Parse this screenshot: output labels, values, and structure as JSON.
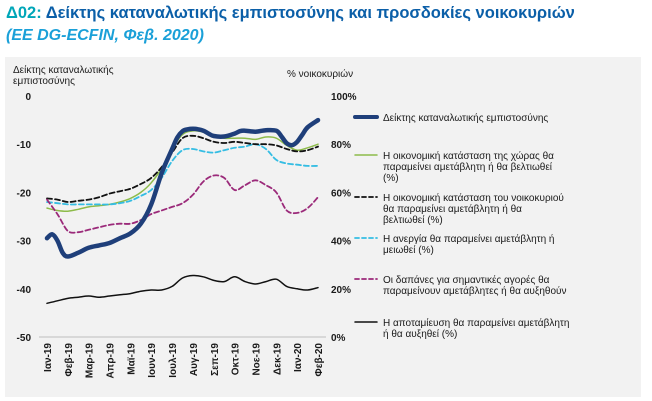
{
  "header": {
    "code": "Δ02:",
    "title": "Δείκτης καταναλωτικής εμπιστοσύνης και προσδοκίες νοικοκυριών",
    "subtitle": "(EE DG-ECFIN, Φεβ. 2020)"
  },
  "chart_data": {
    "type": "line",
    "title": "Δείκτης καταναλωτικής εμπιστοσύνης και προσδοκίες νοικοκυριών",
    "subtitle": "(EE DG-ECFIN, Φεβ. 2020)",
    "y_left_label": "Δείκτης καταναλωτικής εμπιστοσύνης",
    "y_right_label": "% νοικοκυριών",
    "y_left_range": [
      -50,
      0
    ],
    "y_right_range": [
      0,
      100
    ],
    "y_left_ticks": [
      "0",
      "-10",
      "-20",
      "-30",
      "-40",
      "-50"
    ],
    "y_right_ticks": [
      "100%",
      "80%",
      "60%",
      "40%",
      "20%",
      "0%"
    ],
    "categories": [
      "Ιαν-19",
      "Φεβ-19",
      "Μαρ-19",
      "Απρ-19",
      "Μαϊ-19",
      "Ιουν-19",
      "Ιουλ-19",
      "Αυγ-19",
      "Σεπ-19",
      "Οκτ-19",
      "Νοε-19",
      "Δεκ-19",
      "Ιαν-20",
      "Φεβ-20"
    ],
    "grid": false,
    "legend_position": "right",
    "series": [
      {
        "name": "Δείκτης καταναλωτικής εμπιστοσύνης",
        "axis": "left",
        "color": "#1f3f7a",
        "style": "solid-thick",
        "x": [
          0,
          0.25,
          0.5,
          0.75,
          1,
          1.5,
          2,
          2.5,
          3,
          3.5,
          4,
          4.5,
          5,
          5.5,
          6,
          6.25,
          6.5,
          6.75,
          7,
          7.25,
          7.5,
          7.75,
          8,
          8.5,
          9,
          9.25,
          9.5,
          10,
          10.5,
          11,
          11.25,
          11.5,
          11.75,
          12,
          12.25,
          12.5,
          13
        ],
        "y": [
          -29.5,
          -28.7,
          -30,
          -32.5,
          -33.3,
          -32.5,
          -31.5,
          -31,
          -30.5,
          -29.5,
          -28.5,
          -26.5,
          -22.5,
          -16,
          -11,
          -8.6,
          -7.3,
          -6.9,
          -6.8,
          -6.9,
          -7.2,
          -7.8,
          -8.3,
          -8.4,
          -7.8,
          -7.3,
          -7.2,
          -7.4,
          -7.1,
          -7.2,
          -8.4,
          -9.8,
          -10.2,
          -9.5,
          -8,
          -6.5,
          -5
        ]
      },
      {
        "name": "Η οικονομική κατάσταση της χώρας θα παραμείνει αμετάβλητη ή θα βελτιωθεί (%)",
        "axis": "right",
        "color": "#8dbb4a",
        "style": "solid",
        "x": [
          0,
          0.5,
          1,
          1.5,
          2,
          2.5,
          3,
          3.5,
          4,
          4.5,
          5,
          5.5,
          6,
          6.5,
          7,
          7.5,
          8,
          8.5,
          9,
          9.5,
          10,
          10.5,
          11,
          11.5,
          12,
          12.5,
          13
        ],
        "y": [
          53.5,
          52.5,
          52.2,
          53,
          54,
          54.5,
          55,
          56,
          57.5,
          60,
          64,
          70,
          78,
          84,
          85.5,
          85,
          83.5,
          82.5,
          82.5,
          82.5,
          82,
          83,
          82.5,
          79.5,
          77.5,
          78.5,
          80
        ]
      },
      {
        "name": "Η οικονομική κατάσταση του νοικοκυριού θα παραμείνει αμετάβλητη ή θα βελτιωθεί (%)",
        "axis": "right",
        "color": "#111111",
        "style": "dashed",
        "x": [
          0,
          0.5,
          1,
          1.5,
          2,
          2.5,
          3,
          3.5,
          4,
          4.5,
          5,
          5.5,
          6,
          6.5,
          7,
          7.5,
          8,
          8.5,
          9,
          9.5,
          10,
          10.5,
          11,
          11.5,
          12,
          12.5,
          13
        ],
        "y": [
          57.5,
          57,
          56,
          56.5,
          57,
          58,
          59.5,
          60.5,
          61.5,
          63.5,
          66,
          70.5,
          76.5,
          82.5,
          83.5,
          82.5,
          81,
          80.5,
          81,
          80.5,
          80,
          80,
          79.5,
          78,
          77,
          77.5,
          79
        ]
      },
      {
        "name": "Η ανεργία θα παραμείνει αμετάβλητη ή μειωθεί (%)",
        "axis": "right",
        "color": "#35bde3",
        "style": "dashed",
        "x": [
          0,
          0.5,
          1,
          1.5,
          2,
          2.5,
          3,
          3.5,
          4,
          4.5,
          5,
          5.5,
          6,
          6.5,
          7,
          7.5,
          8,
          8.5,
          9,
          9.5,
          10,
          10.5,
          11,
          11.5,
          12,
          12.5,
          13
        ],
        "y": [
          56,
          55.5,
          55,
          55,
          55,
          55,
          55,
          55.5,
          56.5,
          58.5,
          61,
          66,
          73,
          77.5,
          78,
          77,
          76.5,
          77.5,
          78.5,
          79,
          80,
          78,
          73.5,
          72,
          71.5,
          71,
          71
        ]
      },
      {
        "name": "Οι δαπάνες για σημαντικές αγορές θα παραμείνουν αμετάβλητες ή θα αυξηθούν",
        "axis": "right",
        "color": "#9b2a7a",
        "style": "dashed",
        "x": [
          0,
          0.5,
          1,
          1.5,
          2,
          2.5,
          3,
          3.5,
          4,
          4.5,
          5,
          5.5,
          6,
          6.5,
          7,
          7.5,
          8,
          8.5,
          9,
          9.5,
          10,
          10.5,
          11,
          11.5,
          12,
          12.5,
          13
        ],
        "y": [
          57,
          51,
          44,
          43.5,
          44.5,
          45.5,
          46.5,
          47,
          47,
          48.5,
          51,
          52.5,
          54,
          55.5,
          59,
          64.5,
          67,
          66,
          61,
          63,
          65,
          63,
          60,
          52.5,
          51.5,
          53.5,
          58
        ]
      },
      {
        "name": "Η αποταμίευση θα παραμείνει αμετάβλητη ή θα αυξηθεί (%)",
        "axis": "right",
        "color": "#111111",
        "style": "solid",
        "x": [
          0,
          0.5,
          1,
          1.5,
          2,
          2.5,
          3,
          3.5,
          4,
          4.5,
          5,
          5.5,
          6,
          6.5,
          7,
          7.5,
          8,
          8.5,
          9,
          9.5,
          10,
          10.5,
          11,
          11.5,
          12,
          12.5,
          13
        ],
        "y": [
          14,
          15,
          16,
          16.5,
          17,
          16.5,
          17,
          17.5,
          18,
          19,
          19.5,
          19.5,
          21,
          24.5,
          25.5,
          25,
          23.5,
          23,
          25,
          23,
          22,
          23,
          24,
          21,
          20,
          19.5,
          20.5
        ]
      }
    ]
  }
}
